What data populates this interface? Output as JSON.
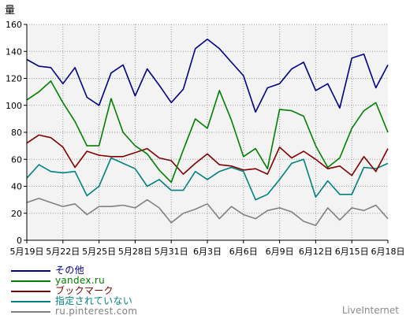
{
  "chart_data": {
    "type": "line",
    "ylabel": "量",
    "ylim": [
      0,
      160
    ],
    "yticks": [
      0,
      20,
      40,
      60,
      80,
      100,
      120,
      140,
      160
    ],
    "x_tick_labels": [
      "5月19日",
      "5月22日",
      "5月25日",
      "5月28日",
      "5月31日",
      "6月3日",
      "6月6日",
      "6月9日",
      "6月12日",
      "6月15日",
      "6月18日"
    ],
    "x_tick_every": 3,
    "grid": true,
    "legend_position": "bottom-left",
    "series": [
      {
        "name": "その他",
        "color": "#000080",
        "values": [
          134,
          129,
          128,
          116,
          128,
          106,
          100,
          124,
          130,
          107,
          127,
          115,
          102,
          112,
          142,
          149,
          142,
          132,
          122,
          95,
          113,
          116,
          127,
          132,
          111,
          116,
          98,
          135,
          138,
          113,
          130
        ]
      },
      {
        "name": "yandex.ru",
        "color": "#008000",
        "values": [
          104,
          110,
          118,
          102,
          88,
          70,
          70,
          105,
          80,
          70,
          64,
          52,
          43,
          67,
          90,
          83,
          111,
          89,
          62,
          68,
          53,
          97,
          96,
          92,
          70,
          54,
          61,
          83,
          96,
          102,
          80
        ]
      },
      {
        "name": "ブックマーク",
        "color": "#800000",
        "values": [
          72,
          78,
          76,
          69,
          54,
          66,
          63,
          62,
          62,
          65,
          68,
          61,
          59,
          49,
          57,
          64,
          56,
          55,
          52,
          53,
          49,
          69,
          61,
          66,
          60,
          53,
          55,
          48,
          62,
          51,
          68
        ]
      },
      {
        "name": "指定されていない",
        "color": "#008080",
        "values": [
          46,
          56,
          51,
          50,
          51,
          33,
          40,
          61,
          57,
          53,
          40,
          45,
          37,
          37,
          51,
          45,
          51,
          54,
          51,
          30,
          34,
          45,
          57,
          60,
          32,
          44,
          34,
          34,
          54,
          53,
          57
        ]
      },
      {
        "name": "ru.pinterest.com",
        "color": "#808080",
        "values": [
          28,
          31,
          28,
          25,
          27,
          19,
          25,
          25,
          26,
          24,
          30,
          24,
          13,
          20,
          23,
          27,
          16,
          25,
          19,
          16,
          22,
          24,
          21,
          14,
          11,
          24,
          15,
          24,
          22,
          26,
          16
        ]
      }
    ]
  },
  "watermark": "LiveInternet"
}
